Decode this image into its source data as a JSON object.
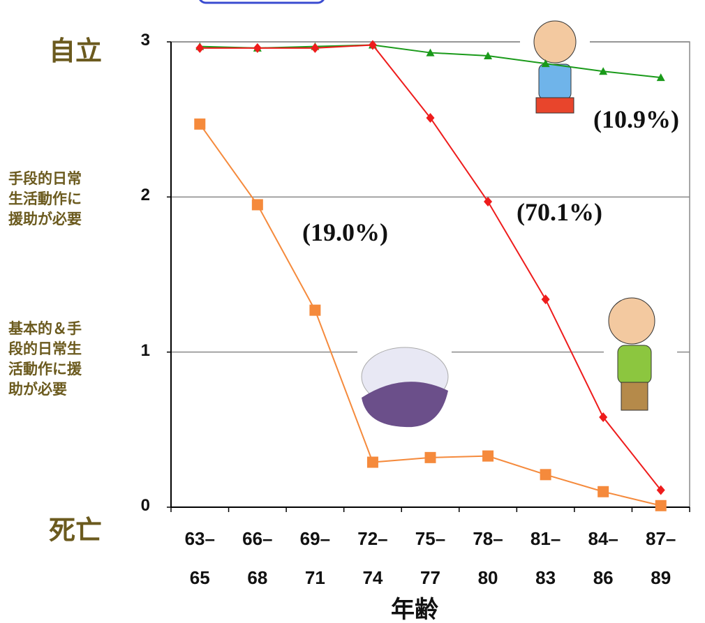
{
  "chart_data": {
    "type": "line",
    "categories": [
      "63–\n65",
      "66–\n68",
      "69–\n71",
      "72–\n74",
      "75–\n77",
      "78–\n80",
      "81–\n83",
      "84–\n86",
      "87–\n89"
    ],
    "series": [
      {
        "name": "(10.9%)",
        "color": "#1a9a1a",
        "marker": "triangle",
        "values": [
          2.97,
          2.96,
          2.97,
          2.98,
          2.93,
          2.91,
          2.86,
          2.81,
          2.77
        ]
      },
      {
        "name": "(70.1%)",
        "color": "#ee1c1c",
        "marker": "diamond",
        "values": [
          2.96,
          2.96,
          2.96,
          2.98,
          2.51,
          1.97,
          1.34,
          0.58,
          0.11
        ]
      },
      {
        "name": "(19.0%)",
        "color": "#f58a3c",
        "marker": "square",
        "values": [
          2.47,
          1.95,
          1.27,
          0.29,
          0.32,
          0.33,
          0.21,
          0.1,
          0.01
        ]
      }
    ],
    "ylim": [
      0,
      3
    ],
    "yticks": [
      0,
      1,
      2,
      3
    ],
    "grid": true,
    "level_labels": [
      "死亡",
      "基本的＆手\n段的日常生\n活動作に援\n助が必要",
      "手段的日常\n生活動作に\n援助が必要",
      "自立"
    ],
    "xlabel": "年齢"
  }
}
